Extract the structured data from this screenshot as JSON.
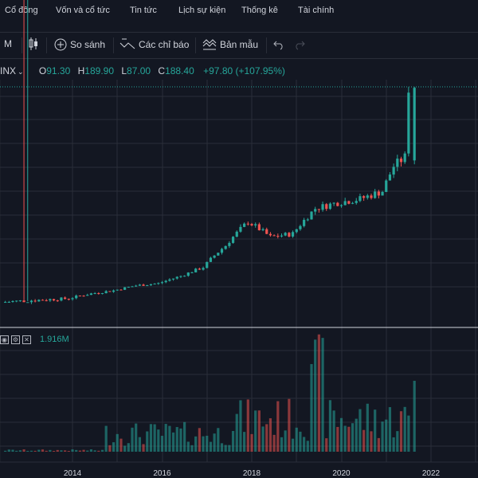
{
  "nav": {
    "items": [
      "Cổ đông",
      "Vốn và cổ tức",
      "Tin tức",
      "Lịch sự kiện",
      "Thống kê",
      "Tài chính"
    ]
  },
  "toolbar": {
    "interval": "M",
    "compare": "So sánh",
    "indicators": "Các chỉ báo",
    "templates": "Bản mẫu"
  },
  "legend": {
    "symbol": "INX",
    "open_key": "O",
    "open": "91.30",
    "high_key": "H",
    "high": "189.90",
    "low_key": "L",
    "low": "87.00",
    "close_key": "C",
    "close": "188.40",
    "change": "+97.80 (+107.95%)"
  },
  "volume": {
    "value": "1.916M"
  },
  "colors": {
    "up": "#26a69a",
    "down": "#ef5350",
    "background": "#131722",
    "grid": "#2a2e39"
  },
  "chart_data": {
    "type": "candlestick",
    "x_ticks": [
      "2014",
      "2016",
      "2018",
      "2020",
      "2022"
    ],
    "price_series": [
      [
        "2012-06",
        2.1
      ],
      [
        "2013-01",
        2.2
      ],
      [
        "2013-07",
        2.3
      ],
      [
        "2014-01",
        2.4
      ],
      [
        "2014-07",
        3.0
      ],
      [
        "2015-01",
        3.5
      ],
      [
        "2015-07",
        4.5
      ],
      [
        "2016-01",
        5.0
      ],
      [
        "2016-07",
        7.0
      ],
      [
        "2017-01",
        10.0
      ],
      [
        "2017-07",
        20.0
      ],
      [
        "2018-01",
        35.0
      ],
      [
        "2018-07",
        25.0
      ],
      [
        "2019-01",
        27.0
      ],
      [
        "2019-07",
        45.0
      ],
      [
        "2020-01",
        50.0
      ],
      [
        "2020-07",
        53.0
      ],
      [
        "2021-01",
        60.0
      ],
      [
        "2021-04",
        85.0
      ],
      [
        "2021-07",
        95.0
      ],
      [
        "2021-08",
        188.4
      ]
    ],
    "last_candle": {
      "open": 91.3,
      "high": 189.9,
      "low": 87.0,
      "close": 188.4
    },
    "volume_last": "1.916M"
  }
}
